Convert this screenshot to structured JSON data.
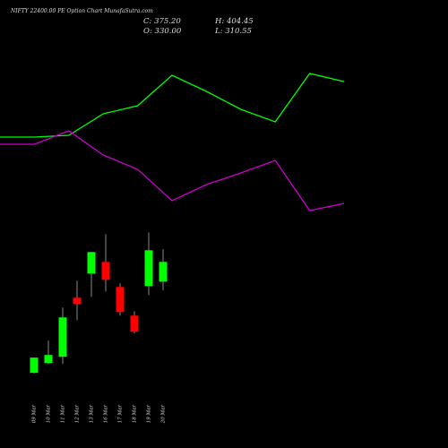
{
  "chart_data": [
    {
      "type": "line",
      "title": "NIFTY 22400.00 PE Option Chart MunafaSutra.com",
      "categories": [
        null,
        null,
        null,
        null,
        null,
        null,
        null,
        null,
        null,
        null,
        null
      ],
      "ylim": [
        0,
        300
      ],
      "series": [
        {
          "color": "#00ff00",
          "values": [
            147,
            147,
            149,
            173,
            182,
            216,
            198,
            178,
            164,
            218,
            209
          ]
        },
        {
          "color": "#cc00cc",
          "values": [
            139,
            139,
            154,
            127,
            111,
            76,
            94,
            107,
            121,
            65,
            73
          ]
        }
      ]
    },
    {
      "type": "candlestick",
      "annotations": [
        "C: 375.20",
        "H: 404.45",
        "O: 330.00",
        "L: 310.55"
      ],
      "categories": [
        "09 Mar",
        "10 Mar",
        "11 Mar",
        "12 Mar",
        "13 Mar",
        "16 Mar",
        "17 Mar",
        "18 Mar",
        "19 Mar",
        "20 Mar"
      ],
      "open": [
        121,
        143.5,
        157.9,
        293.2,
        348.5,
        375.2,
        317.8,
        252.2,
        319.8,
        330
      ],
      "high": [
        156,
        194.8,
        270.6,
        332.2,
        397.8,
        438.8,
        326,
        262.5,
        442.9,
        404.45
      ],
      "low": [
        120,
        141,
        141.5,
        242,
        295,
        307.5,
        252.2,
        211.2,
        299.3,
        310.55
      ],
      "close": [
        156,
        162,
        248,
        278.8,
        397.8,
        334.2,
        260.4,
        215.3,
        401.9,
        375.2
      ],
      "up_color": "#00ff00",
      "down_color": "#ff0000",
      "ylim": [
        70,
        460
      ]
    }
  ]
}
